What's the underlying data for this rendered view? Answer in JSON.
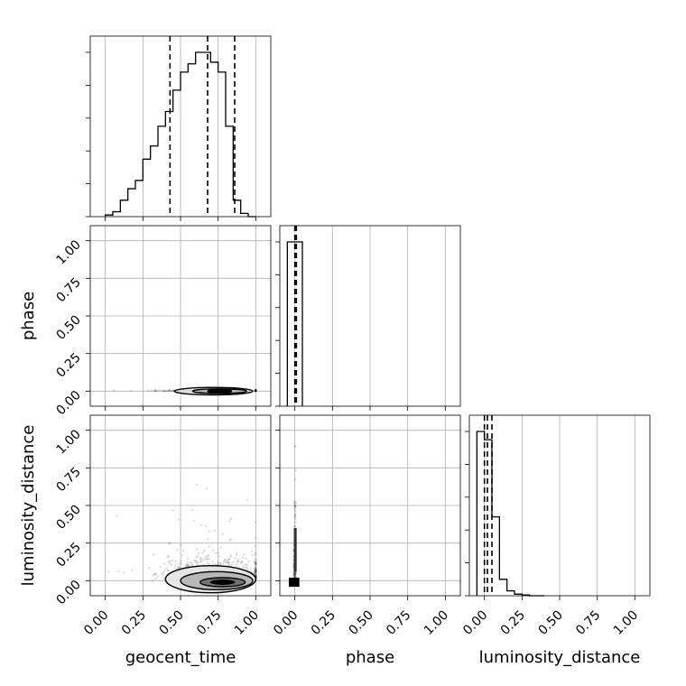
{
  "chart_data": {
    "type": "corner",
    "parameters": [
      "geocent_time",
      "phase",
      "luminosity_distance"
    ],
    "tick_labels": [
      "0.00",
      "0.25",
      "0.50",
      "0.75",
      "1.00"
    ],
    "axis_range": [
      -0.1,
      1.1
    ],
    "grid": true,
    "diagonal_histograms": [
      {
        "parameter": "geocent_time",
        "bin_edges": [
          0.0,
          0.05,
          0.1,
          0.15,
          0.2,
          0.25,
          0.3,
          0.35,
          0.4,
          0.45,
          0.5,
          0.55,
          0.6,
          0.65,
          0.7,
          0.75,
          0.8,
          0.85,
          0.9,
          0.95,
          1.0
        ],
        "heights": [
          0.01,
          0.03,
          0.1,
          0.17,
          0.22,
          0.35,
          0.43,
          0.55,
          0.64,
          0.77,
          0.88,
          0.93,
          1.0,
          1.0,
          0.94,
          0.88,
          0.55,
          0.1,
          0.02,
          0.0
        ],
        "quantiles": [
          0.43,
          0.68,
          0.86
        ]
      },
      {
        "parameter": "phase",
        "bin_edges": [
          -0.05,
          0.0,
          0.05
        ],
        "heights": [
          1.0,
          1.0
        ],
        "quantiles": [
          0.0,
          0.01
        ]
      },
      {
        "parameter": "luminosity_distance",
        "bin_edges": [
          -0.05,
          0.0,
          0.05,
          0.1,
          0.15,
          0.2,
          0.25,
          0.3,
          0.35,
          0.4
        ],
        "heights": [
          1.0,
          0.95,
          0.48,
          0.1,
          0.03,
          0.01,
          0.005,
          0.0,
          0.0
        ],
        "quantiles": [
          0.0,
          0.02,
          0.05
        ]
      }
    ],
    "pair_panels": [
      {
        "x": "geocent_time",
        "y": "phase",
        "contours": [
          {
            "center": [
              0.76,
              0.0
            ],
            "half_width": [
              0.18,
              0.015
            ]
          },
          {
            "center": [
              0.72,
              0.0
            ],
            "half_width": [
              0.26,
              0.025
            ]
          }
        ]
      },
      {
        "x": "geocent_time",
        "y": "luminosity_distance",
        "contours": [
          {
            "center": [
              0.78,
              -0.01
            ],
            "half_width": [
              0.15,
              0.03
            ]
          },
          {
            "center": [
              0.74,
              0.0
            ],
            "half_width": [
              0.24,
              0.06
            ]
          },
          {
            "center": [
              0.7,
              0.01
            ],
            "half_width": [
              0.3,
              0.09
            ]
          }
        ]
      },
      {
        "x": "phase",
        "y": "luminosity_distance",
        "contours": []
      }
    ]
  }
}
